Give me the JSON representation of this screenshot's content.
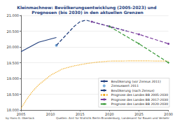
{
  "chart_data": {
    "type": "line",
    "title": "Kleinmachnow: Bevölkerungsentwicklung (2005-2023) und Prognosen (bis 2030) in den aktuellen Grenzen",
    "source": "Quellen: Amt für Statistik Berlin-Brandenburg, Landesamt für Bauen und Verkehr",
    "author": "by Hans G. Oberlack",
    "xlim": [
      2005,
      2030
    ],
    "xticks": [
      2005,
      2010,
      2015,
      2020,
      2025,
      2030
    ],
    "ylim": [
      18000,
      21000
    ],
    "yticks": [
      {
        "value": 18000,
        "label": "18.000"
      },
      {
        "value": 18500,
        "label": "18.500"
      },
      {
        "value": 19000,
        "label": "19.000"
      },
      {
        "value": 19500,
        "label": "19.500"
      },
      {
        "value": 20000,
        "label": "20.000"
      },
      {
        "value": 20500,
        "label": "20.500"
      },
      {
        "value": 21000,
        "label": "21.000"
      }
    ],
    "grid": true,
    "legend": "lower right",
    "series": [
      {
        "name": "Bevölkerung (vor Zensus 2011)",
        "type": "line",
        "color": "#23407e",
        "line_style": "solid",
        "x": [
          2005,
          2006,
          2007,
          2008,
          2009,
          2010,
          2011
        ],
        "values": [
          19850,
          19950,
          20050,
          20150,
          20200,
          20250,
          20300
        ]
      },
      {
        "name": "Zensuswert 2011",
        "type": "scatter",
        "color": "#5b9bd5",
        "marker": "circle",
        "x": [
          2011
        ],
        "values": [
          20050
        ]
      },
      {
        "name": "Bevölkerung (nach Zensus)",
        "type": "line",
        "color": "#23407e",
        "line_style": "dashed",
        "x": [
          2011,
          2012,
          2013,
          2014,
          2015,
          2016,
          2017,
          2018,
          2019,
          2020,
          2021,
          2022,
          2023
        ],
        "values": [
          20050,
          20250,
          20450,
          20650,
          20800,
          20850,
          20800,
          20750,
          20700,
          20650,
          20600,
          20550,
          20500
        ]
      },
      {
        "name": "Prognose des Landes BB 2005-2030",
        "type": "line",
        "color": "#f0a818",
        "line_style": "dotted",
        "x": [
          2005,
          2006,
          2007,
          2008,
          2009,
          2010,
          2012,
          2014,
          2016,
          2018,
          2020,
          2025,
          2030
        ],
        "values": [
          18050,
          18350,
          18600,
          18800,
          18950,
          19100,
          19300,
          19400,
          19470,
          19520,
          19550,
          19560,
          19550
        ]
      },
      {
        "name": "Prognose des Landes BB 2017-2030",
        "type": "line",
        "color": "#7b3f9e",
        "line_style": "dashed",
        "marker": "circle",
        "x": [
          2017,
          2020,
          2025,
          2030
        ],
        "values": [
          20800,
          20650,
          20400,
          20100
        ]
      },
      {
        "name": "Prognose des Landes BB 2020-2030",
        "type": "line",
        "color": "#3a9a3a",
        "line_style": "dashed",
        "marker": "diamond",
        "x": [
          2020,
          2025,
          2030
        ],
        "values": [
          20650,
          20100,
          19500
        ]
      }
    ]
  }
}
